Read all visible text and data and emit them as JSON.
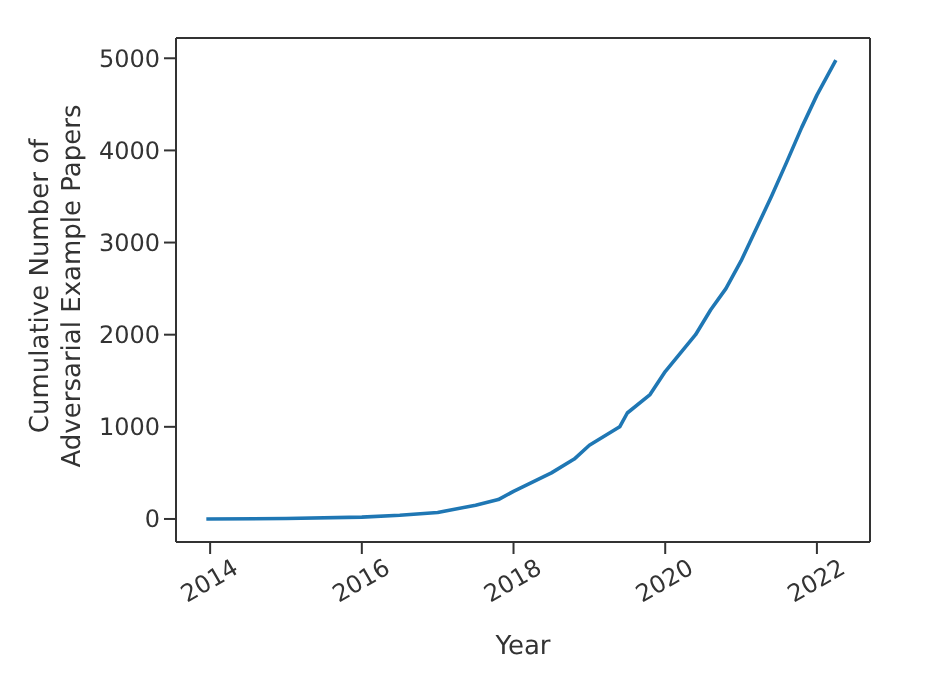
{
  "chart_data": {
    "type": "line",
    "xlabel": "Year",
    "ylabel": "Cumulative Number of\nAdversarial Example Papers",
    "x": [
      2013.95,
      2015,
      2016,
      2016.5,
      2017,
      2017.5,
      2017.8,
      2018,
      2018.5,
      2018.8,
      2019,
      2019.4,
      2019.5,
      2019.8,
      2020,
      2020.2,
      2020.4,
      2020.6,
      2020.8,
      2021,
      2021.2,
      2021.4,
      2021.6,
      2021.8,
      2022,
      2022.25
    ],
    "series": [
      {
        "color": "#1f77b4",
        "values": [
          0,
          5,
          20,
          40,
          70,
          150,
          210,
          300,
          500,
          650,
          800,
          1000,
          1150,
          1350,
          1600,
          1800,
          2000,
          2270,
          2500,
          2800,
          3150,
          3500,
          3870,
          4250,
          4600,
          4980
        ]
      }
    ],
    "xlim": [
      2013.55,
      2022.7
    ],
    "xticks": [
      2014,
      2016,
      2018,
      2020,
      2022
    ],
    "ylim": [
      -250,
      5220
    ],
    "yticks": [
      0,
      1000,
      2000,
      3000,
      4000,
      5000
    ],
    "grid": false,
    "legend": false,
    "marker": "none",
    "line_style": "solid"
  }
}
